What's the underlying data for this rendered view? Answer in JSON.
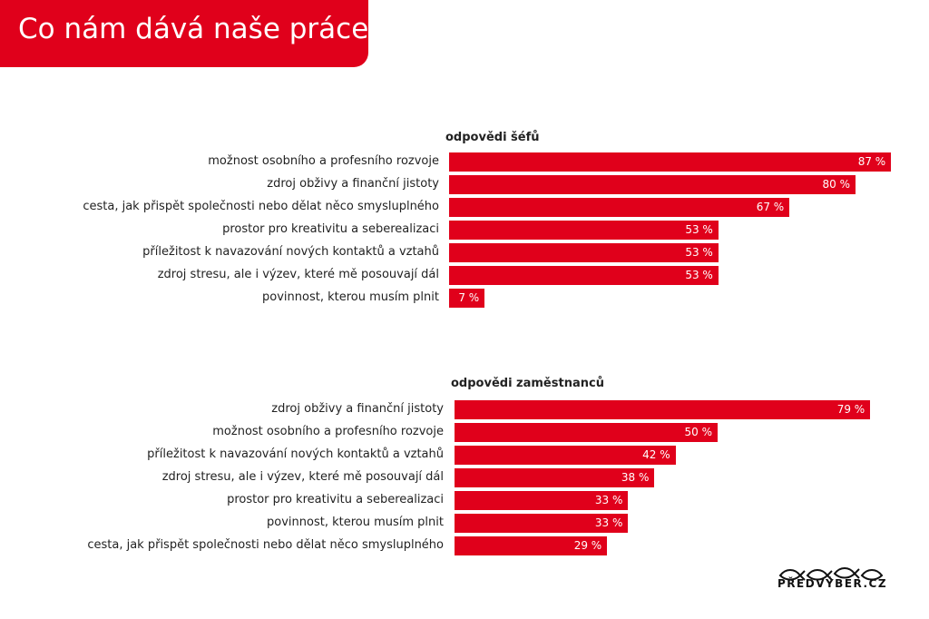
{
  "title": "Co nám dává naše práce",
  "brand": "PŘEDVÝBĚR.CZ",
  "colors": {
    "accent": "#e0001b"
  },
  "chart_data": [
    {
      "type": "bar",
      "orientation": "horizontal",
      "title": "odpovědi šéfů",
      "unit": "%",
      "categories": [
        "možnost osobního a profesního rozvoje",
        "zdroj obživy a finanční jistoty",
        "cesta, jak přispět společnosti nebo dělat něco smysluplného",
        "prostor pro kreativitu a seberealizaci",
        "příležitost k navazování nových kontaktů a vztahů",
        "zdroj stresu, ale i výzev, které mě posouvají dál",
        "povinnost, kterou musím plnit"
      ],
      "values": [
        87,
        80,
        67,
        53,
        53,
        53,
        7
      ],
      "value_labels": [
        "87 %",
        "80 %",
        "67 %",
        "53 %",
        "53 %",
        "53 %",
        "7 %"
      ]
    },
    {
      "type": "bar",
      "orientation": "horizontal",
      "title": "odpovědi zaměstnanců",
      "unit": "%",
      "categories": [
        "zdroj obživy a finanční jistoty",
        "možnost osobního a profesního rozvoje",
        "příležitost k navazování nových kontaktů a vztahů",
        "zdroj stresu, ale i výzev, které mě posouvají dál",
        "prostor pro kreativitu a seberealizaci",
        "povinnost, kterou musím plnit",
        "cesta, jak přispět společnosti nebo dělat něco smysluplného"
      ],
      "values": [
        79,
        50,
        42,
        38,
        33,
        33,
        29
      ],
      "value_labels": [
        "79 %",
        "50 %",
        "42 %",
        "38 %",
        "33 %",
        "33 %",
        "29 %"
      ]
    }
  ]
}
